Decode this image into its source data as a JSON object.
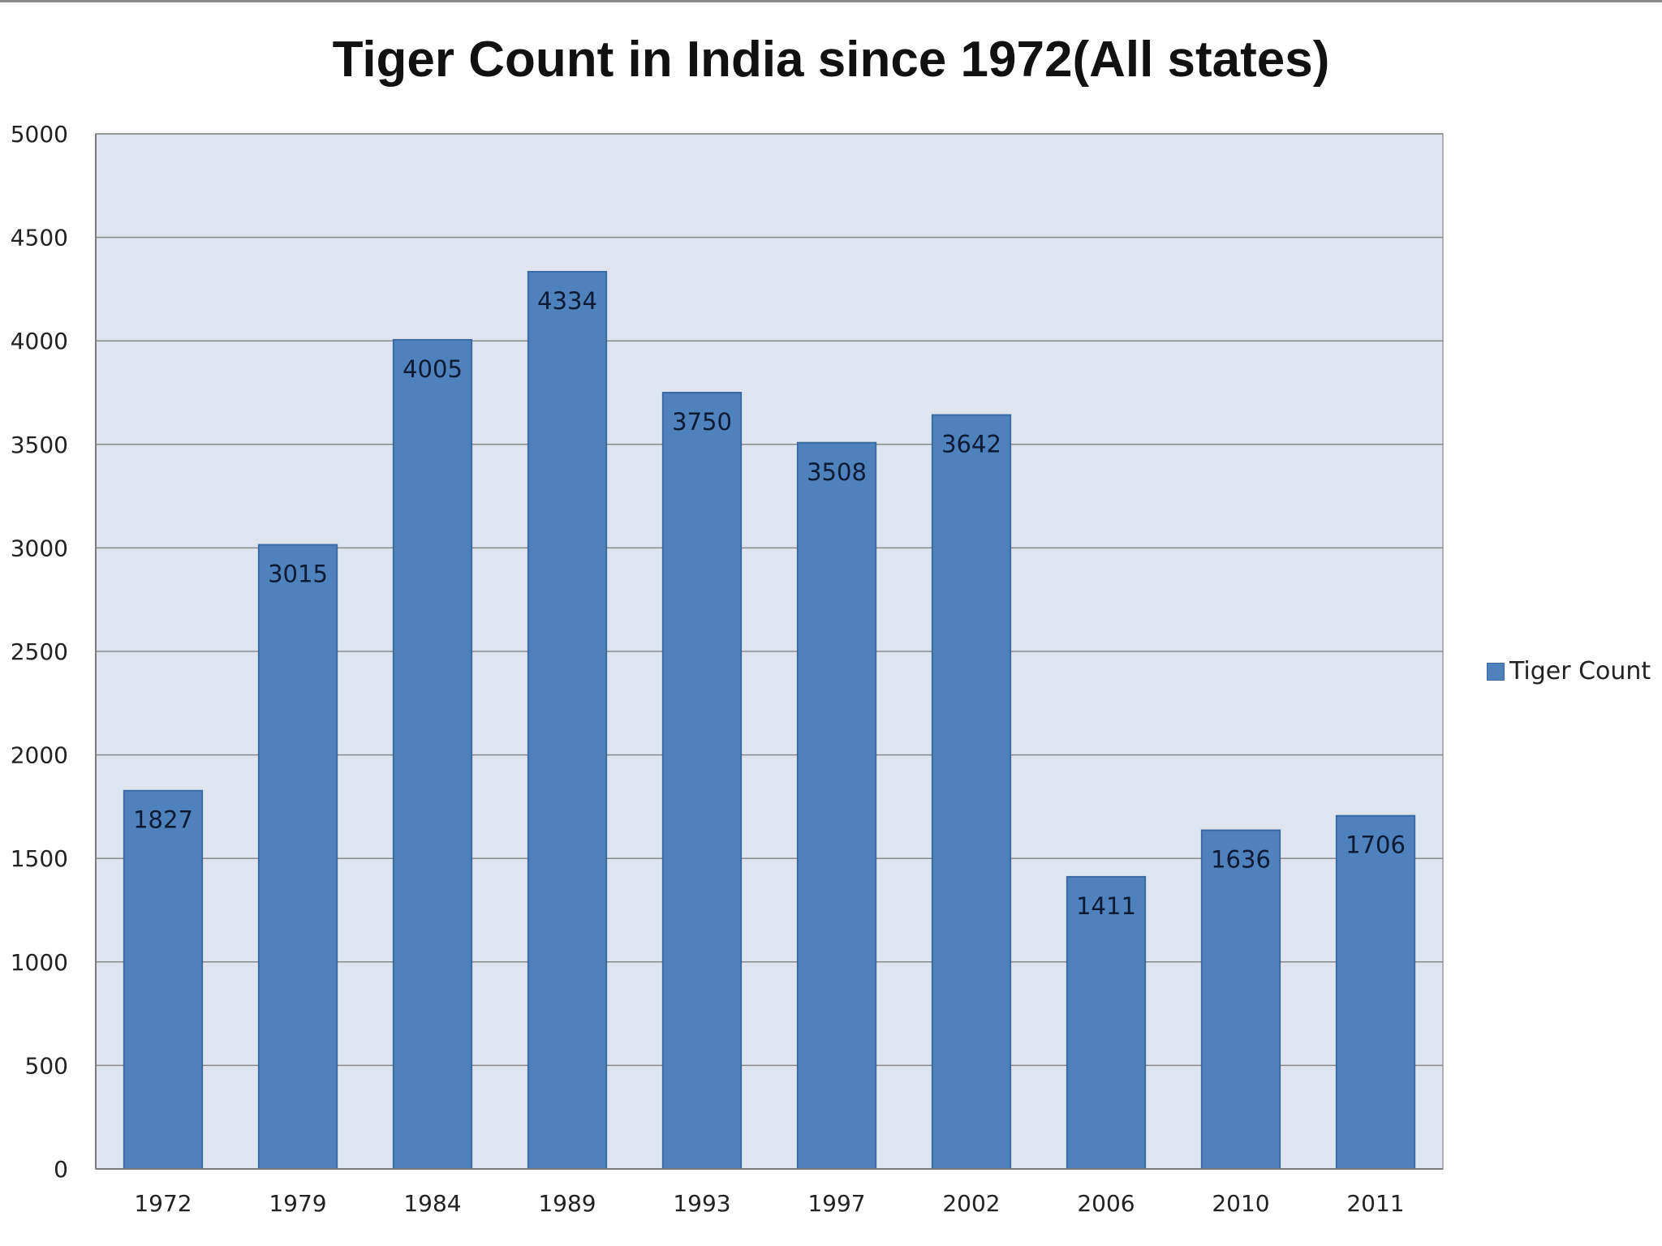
{
  "chart_data": {
    "type": "bar",
    "title": "Tiger Count in India since 1972(All states)",
    "xlabel": "",
    "ylabel": "",
    "categories": [
      "1972",
      "1979",
      "1984",
      "1989",
      "1993",
      "1997",
      "2002",
      "2006",
      "2010",
      "2011"
    ],
    "series": [
      {
        "name": "Tiger Count",
        "values": [
          1827,
          3015,
          4005,
          4334,
          3750,
          3508,
          3642,
          1411,
          1636,
          1706
        ]
      }
    ],
    "ylim": [
      0,
      5000
    ],
    "yticks": [
      0,
      500,
      1000,
      1500,
      2000,
      2500,
      3000,
      3500,
      4000,
      4500,
      5000
    ],
    "grid": true,
    "legend_position": "right",
    "data_labels": true,
    "colors": {
      "bar": "#4f81bd",
      "bar_edge": "#3a6aa3",
      "plot_background": "#dfe5ef",
      "gridline": "#8a8a8a"
    }
  }
}
